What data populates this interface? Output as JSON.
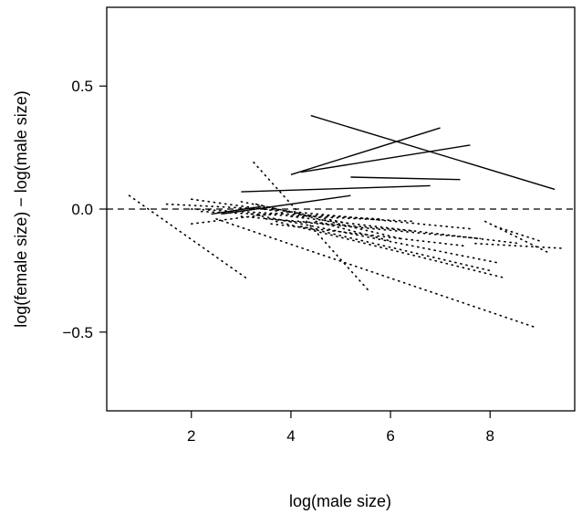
{
  "chart_data": {
    "type": "line",
    "title": "",
    "xlabel": "log(male size)",
    "ylabel": "log(female size) − log(male size)",
    "xlim": [
      0.3,
      9.7
    ],
    "ylim": [
      -0.82,
      0.82
    ],
    "x_ticks": [
      2,
      4,
      6,
      8
    ],
    "x_tick_labels": [
      "2",
      "4",
      "6",
      "8"
    ],
    "y_ticks": [
      -0.5,
      0.0,
      0.5
    ],
    "y_tick_labels": [
      "−0.5",
      "0.0",
      "0.5"
    ],
    "grid": false,
    "legend": "none",
    "reference_line": {
      "y": 0,
      "style": "dashed"
    },
    "series": [
      {
        "style": "solid",
        "x": [
          4.4,
          9.3
        ],
        "y": [
          0.38,
          0.08
        ]
      },
      {
        "style": "solid",
        "x": [
          4.0,
          7.0
        ],
        "y": [
          0.14,
          0.33
        ]
      },
      {
        "style": "solid",
        "x": [
          4.2,
          7.6
        ],
        "y": [
          0.15,
          0.26
        ]
      },
      {
        "style": "solid",
        "x": [
          5.2,
          7.4
        ],
        "y": [
          0.13,
          0.12
        ]
      },
      {
        "style": "solid",
        "x": [
          3.0,
          6.8
        ],
        "y": [
          0.07,
          0.095
        ]
      },
      {
        "style": "solid",
        "x": [
          2.6,
          5.2
        ],
        "y": [
          -0.02,
          0.055
        ]
      },
      {
        "style": "solid",
        "x": [
          2.4,
          3.4
        ],
        "y": [
          -0.02,
          0.01
        ]
      },
      {
        "style": "dotted",
        "x": [
          0.75,
          3.1
        ],
        "y": [
          0.055,
          -0.28
        ]
      },
      {
        "style": "dotted",
        "x": [
          3.25,
          5.6
        ],
        "y": [
          0.19,
          -0.34
        ]
      },
      {
        "style": "dotted",
        "x": [
          2.0,
          5.8
        ],
        "y": [
          0.0,
          -0.04
        ]
      },
      {
        "style": "dotted",
        "x": [
          2.2,
          6.5
        ],
        "y": [
          -0.01,
          -0.05
        ]
      },
      {
        "style": "dotted",
        "x": [
          1.5,
          3.5
        ],
        "y": [
          0.02,
          0.0
        ]
      },
      {
        "style": "dotted",
        "x": [
          2.0,
          3.8
        ],
        "y": [
          0.04,
          -0.01
        ]
      },
      {
        "style": "dotted",
        "x": [
          3.0,
          5.2
        ],
        "y": [
          0.03,
          -0.06
        ]
      },
      {
        "style": "dotted",
        "x": [
          3.3,
          6.2
        ],
        "y": [
          0.02,
          -0.12
        ]
      },
      {
        "style": "dotted",
        "x": [
          3.5,
          7.6
        ],
        "y": [
          0.0,
          -0.08
        ]
      },
      {
        "style": "dotted",
        "x": [
          3.5,
          7.8
        ],
        "y": [
          -0.04,
          -0.12
        ]
      },
      {
        "style": "dotted",
        "x": [
          3.6,
          7.5
        ],
        "y": [
          -0.06,
          -0.15
        ]
      },
      {
        "style": "dotted",
        "x": [
          3.2,
          8.2
        ],
        "y": [
          -0.02,
          -0.22
        ]
      },
      {
        "style": "dotted",
        "x": [
          3.7,
          8.3
        ],
        "y": [
          -0.05,
          -0.28
        ]
      },
      {
        "style": "dotted",
        "x": [
          4.0,
          8.6
        ],
        "y": [
          -0.03,
          -0.14
        ]
      },
      {
        "style": "dotted",
        "x": [
          4.2,
          8.0
        ],
        "y": [
          -0.07,
          -0.25
        ]
      },
      {
        "style": "dotted",
        "x": [
          2.5,
          8.9
        ],
        "y": [
          -0.04,
          -0.48
        ]
      },
      {
        "style": "dotted",
        "x": [
          4.5,
          6.0
        ],
        "y": [
          -0.05,
          -0.13
        ]
      },
      {
        "style": "dotted",
        "x": [
          3.0,
          6.5
        ],
        "y": [
          -0.03,
          -0.09
        ]
      },
      {
        "style": "dotted",
        "x": [
          7.9,
          9.2
        ],
        "y": [
          -0.05,
          -0.18
        ]
      },
      {
        "style": "dotted",
        "x": [
          7.7,
          9.5
        ],
        "y": [
          -0.14,
          -0.16
        ]
      },
      {
        "style": "dotted",
        "x": [
          8.1,
          9.0
        ],
        "y": [
          -0.07,
          -0.13
        ]
      },
      {
        "style": "dotted",
        "x": [
          2.0,
          4.0
        ],
        "y": [
          -0.06,
          -0.01
        ]
      }
    ]
  }
}
